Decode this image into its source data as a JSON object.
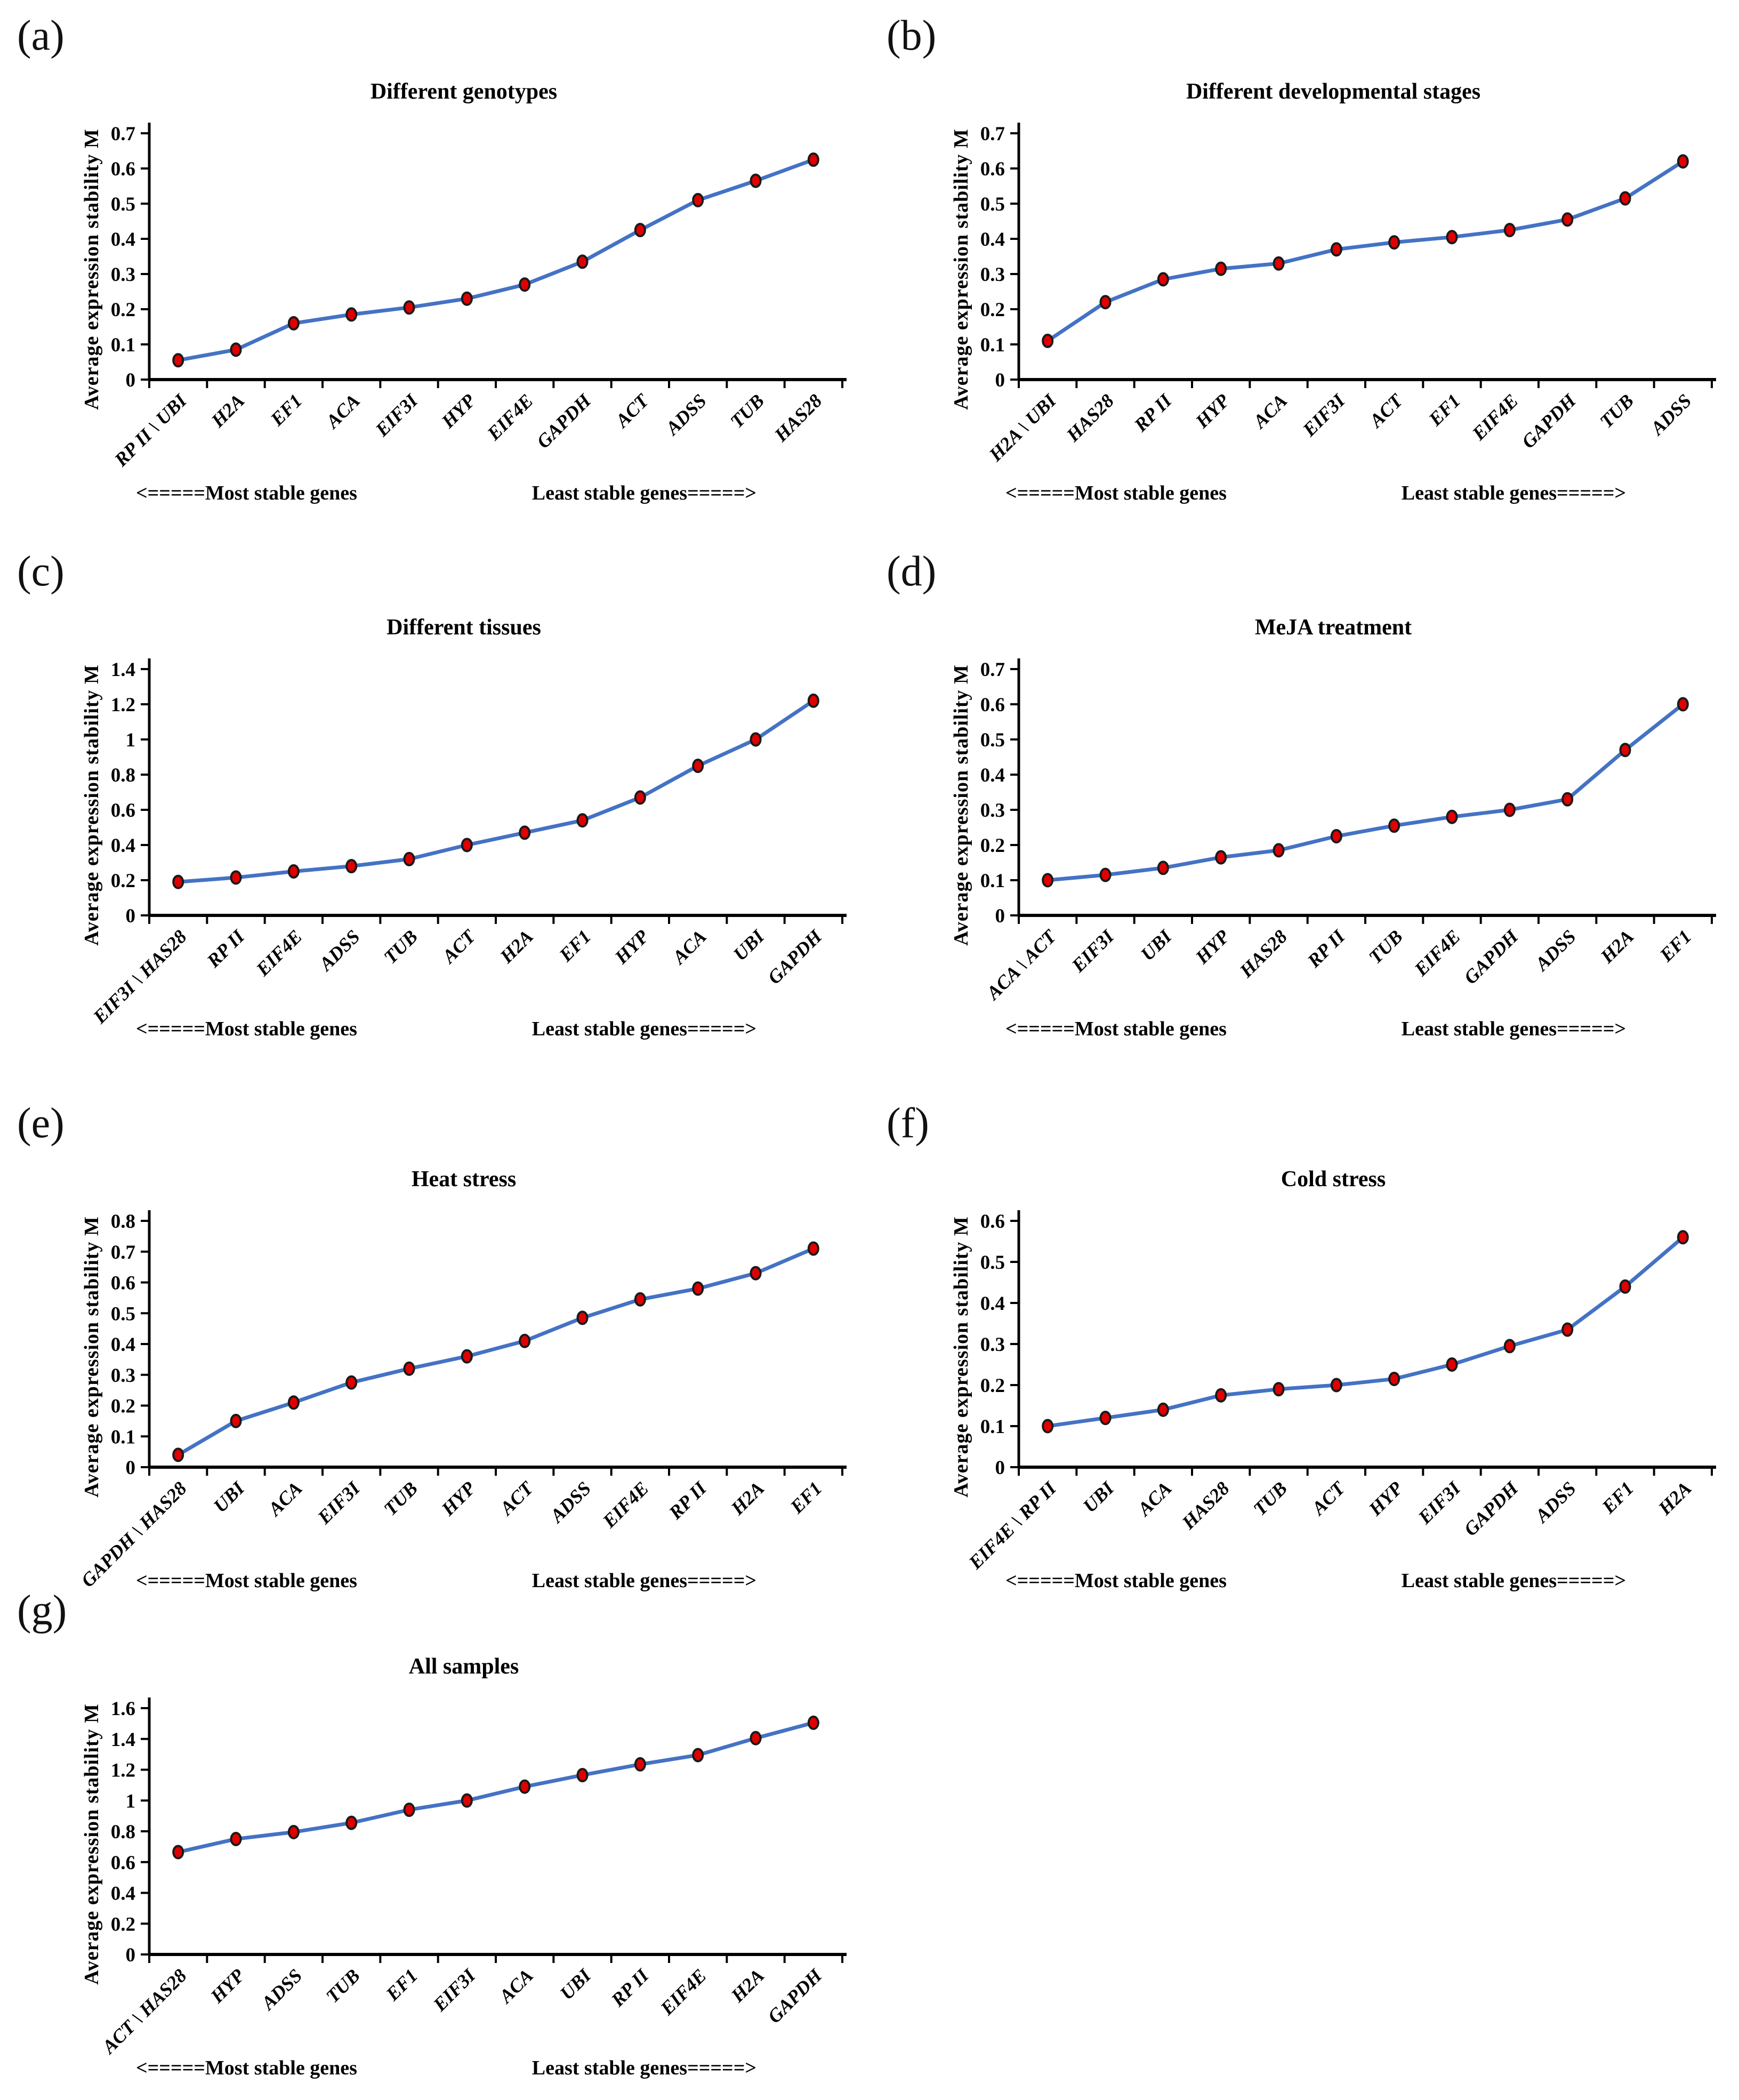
{
  "style": {
    "line_color": "#4472C4",
    "marker_fill": "#E10000",
    "marker_stroke": "#1A1A1A",
    "axis_color": "#000000",
    "text_color": "#000000",
    "background": "#FFFFFF"
  },
  "chart_data": [
    {
      "type": "line",
      "panel_letter": "(a)",
      "title": "Different genotypes",
      "xlabel": "",
      "ylabel": "Average expression stability M",
      "ylim": [
        0,
        0.7
      ],
      "yticks": [
        "0",
        "0.1",
        "0.2",
        "0.3",
        "0.4",
        "0.5",
        "0.6",
        "0.7"
      ],
      "grid": false,
      "legend": "none",
      "categories": [
        "RP II \\ UBI",
        "H2A",
        "EF1",
        "ACA",
        "EIF3I",
        "HYP",
        "EIF4E",
        "GAPDH",
        "ACT",
        "ADSS",
        "TUB",
        "HAS28"
      ],
      "values": [
        0.055,
        0.085,
        0.16,
        0.185,
        0.205,
        0.23,
        0.27,
        0.335,
        0.425,
        0.51,
        0.565,
        0.625
      ],
      "annotations": {
        "left": "<=====Most stable genes",
        "right": "Least stable genes=====>"
      }
    },
    {
      "type": "line",
      "panel_letter": "(b)",
      "title": "Different developmental stages",
      "xlabel": "",
      "ylabel": "Average expression stability M",
      "ylim": [
        0,
        0.7
      ],
      "yticks": [
        "0",
        "0.1",
        "0.2",
        "0.3",
        "0.4",
        "0.5",
        "0.6",
        "0.7"
      ],
      "grid": false,
      "legend": "none",
      "categories": [
        "H2A \\ UBI",
        "HAS28",
        "RP II",
        "HYP",
        "ACA",
        "EIF3I",
        "ACT",
        "EF1",
        "EIF4E",
        "GAPDH",
        "TUB",
        "ADSS"
      ],
      "values": [
        0.11,
        0.22,
        0.285,
        0.315,
        0.33,
        0.37,
        0.39,
        0.405,
        0.425,
        0.455,
        0.515,
        0.62
      ],
      "annotations": {
        "left": "<=====Most stable genes",
        "right": "Least stable genes=====>"
      }
    },
    {
      "type": "line",
      "panel_letter": "(c)",
      "title": "Different tissues",
      "xlabel": "",
      "ylabel": "Average expression stability M",
      "ylim": [
        0,
        1.4
      ],
      "yticks": [
        "0",
        "0.2",
        "0.4",
        "0.6",
        "0.8",
        "1",
        "1.2",
        "1.4"
      ],
      "grid": false,
      "legend": "none",
      "categories": [
        "EIF3I \\ HAS28",
        "RP II",
        "EIF4E",
        "ADSS",
        "TUB",
        "ACT",
        "H2A",
        "EF1",
        "HYP",
        "ACA",
        "UBI",
        "GAPDH"
      ],
      "values": [
        0.19,
        0.215,
        0.25,
        0.28,
        0.32,
        0.4,
        0.47,
        0.54,
        0.67,
        0.85,
        1.0,
        1.22
      ],
      "annotations": {
        "left": "<=====Most stable genes",
        "right": "Least stable genes=====>"
      }
    },
    {
      "type": "line",
      "panel_letter": "(d)",
      "title": "MeJA treatment",
      "xlabel": "",
      "ylabel": "Average expression stability M",
      "ylim": [
        0,
        0.7
      ],
      "yticks": [
        "0",
        "0.1",
        "0.2",
        "0.3",
        "0.4",
        "0.5",
        "0.6",
        "0.7"
      ],
      "grid": false,
      "legend": "none",
      "categories": [
        "ACA \\ ACT",
        "EIF3I",
        "UBI",
        "HYP",
        "HAS28",
        "RP II",
        "TUB",
        "EIF4E",
        "GAPDH",
        "ADSS",
        "H2A",
        "EF1"
      ],
      "values": [
        0.1,
        0.115,
        0.135,
        0.165,
        0.185,
        0.225,
        0.255,
        0.28,
        0.3,
        0.33,
        0.47,
        0.6
      ],
      "annotations": {
        "left": "<=====Most stable genes",
        "right": "Least stable genes=====>"
      }
    },
    {
      "type": "line",
      "panel_letter": "(e)",
      "title": "Heat stress",
      "xlabel": "",
      "ylabel": "Average expression stability M",
      "ylim": [
        0,
        0.8
      ],
      "yticks": [
        "0",
        "0.1",
        "0.2",
        "0.3",
        "0.4",
        "0.5",
        "0.6",
        "0.7",
        "0.8"
      ],
      "grid": false,
      "legend": "none",
      "categories": [
        "GAPDH \\ HAS28",
        "UBI",
        "ACA",
        "EIF3I",
        "TUB",
        "HYP",
        "ACT",
        "ADSS",
        "EIF4E",
        "RP II",
        "H2A",
        "EF1"
      ],
      "values": [
        0.04,
        0.15,
        0.21,
        0.275,
        0.32,
        0.36,
        0.41,
        0.485,
        0.545,
        0.58,
        0.63,
        0.71
      ],
      "annotations": {
        "left": "<=====Most stable genes",
        "right": "Least stable genes=====>"
      }
    },
    {
      "type": "line",
      "panel_letter": "(f)",
      "title": "Cold stress",
      "xlabel": "",
      "ylabel": "Average expression stability M",
      "ylim": [
        0,
        0.6
      ],
      "yticks": [
        "0",
        "0.1",
        "0.2",
        "0.3",
        "0.4",
        "0.5",
        "0.6"
      ],
      "grid": false,
      "legend": "none",
      "categories": [
        "EIF4E \\ RP II",
        "UBI",
        "ACA",
        "HAS28",
        "TUB",
        "ACT",
        "HYP",
        "EIF3I",
        "GAPDH",
        "ADSS",
        "EF1",
        "H2A"
      ],
      "values": [
        0.1,
        0.12,
        0.14,
        0.175,
        0.19,
        0.2,
        0.215,
        0.25,
        0.295,
        0.335,
        0.44,
        0.56
      ],
      "annotations": {
        "left": "<=====Most stable genes",
        "right": "Least stable genes=====>"
      }
    },
    {
      "type": "line",
      "panel_letter": "(g)",
      "title": "All samples",
      "xlabel": "",
      "ylabel": "Average expression stability M",
      "ylim": [
        0,
        1.6
      ],
      "yticks": [
        "0",
        "0.2",
        "0.4",
        "0.6",
        "0.8",
        "1",
        "1.2",
        "1.4",
        "1.6"
      ],
      "grid": false,
      "legend": "none",
      "categories": [
        "ACT \\ HAS28",
        "HYP",
        "ADSS",
        "TUB",
        "EF1",
        "EIF3I",
        "ACA",
        "UBI",
        "RP II",
        "EIF4E",
        "H2A",
        "GAPDH"
      ],
      "values": [
        0.665,
        0.75,
        0.795,
        0.855,
        0.94,
        1.0,
        1.09,
        1.165,
        1.235,
        1.295,
        1.405,
        1.505
      ],
      "annotations": {
        "left": "<=====Most stable genes",
        "right": "Least stable genes=====>"
      }
    }
  ]
}
